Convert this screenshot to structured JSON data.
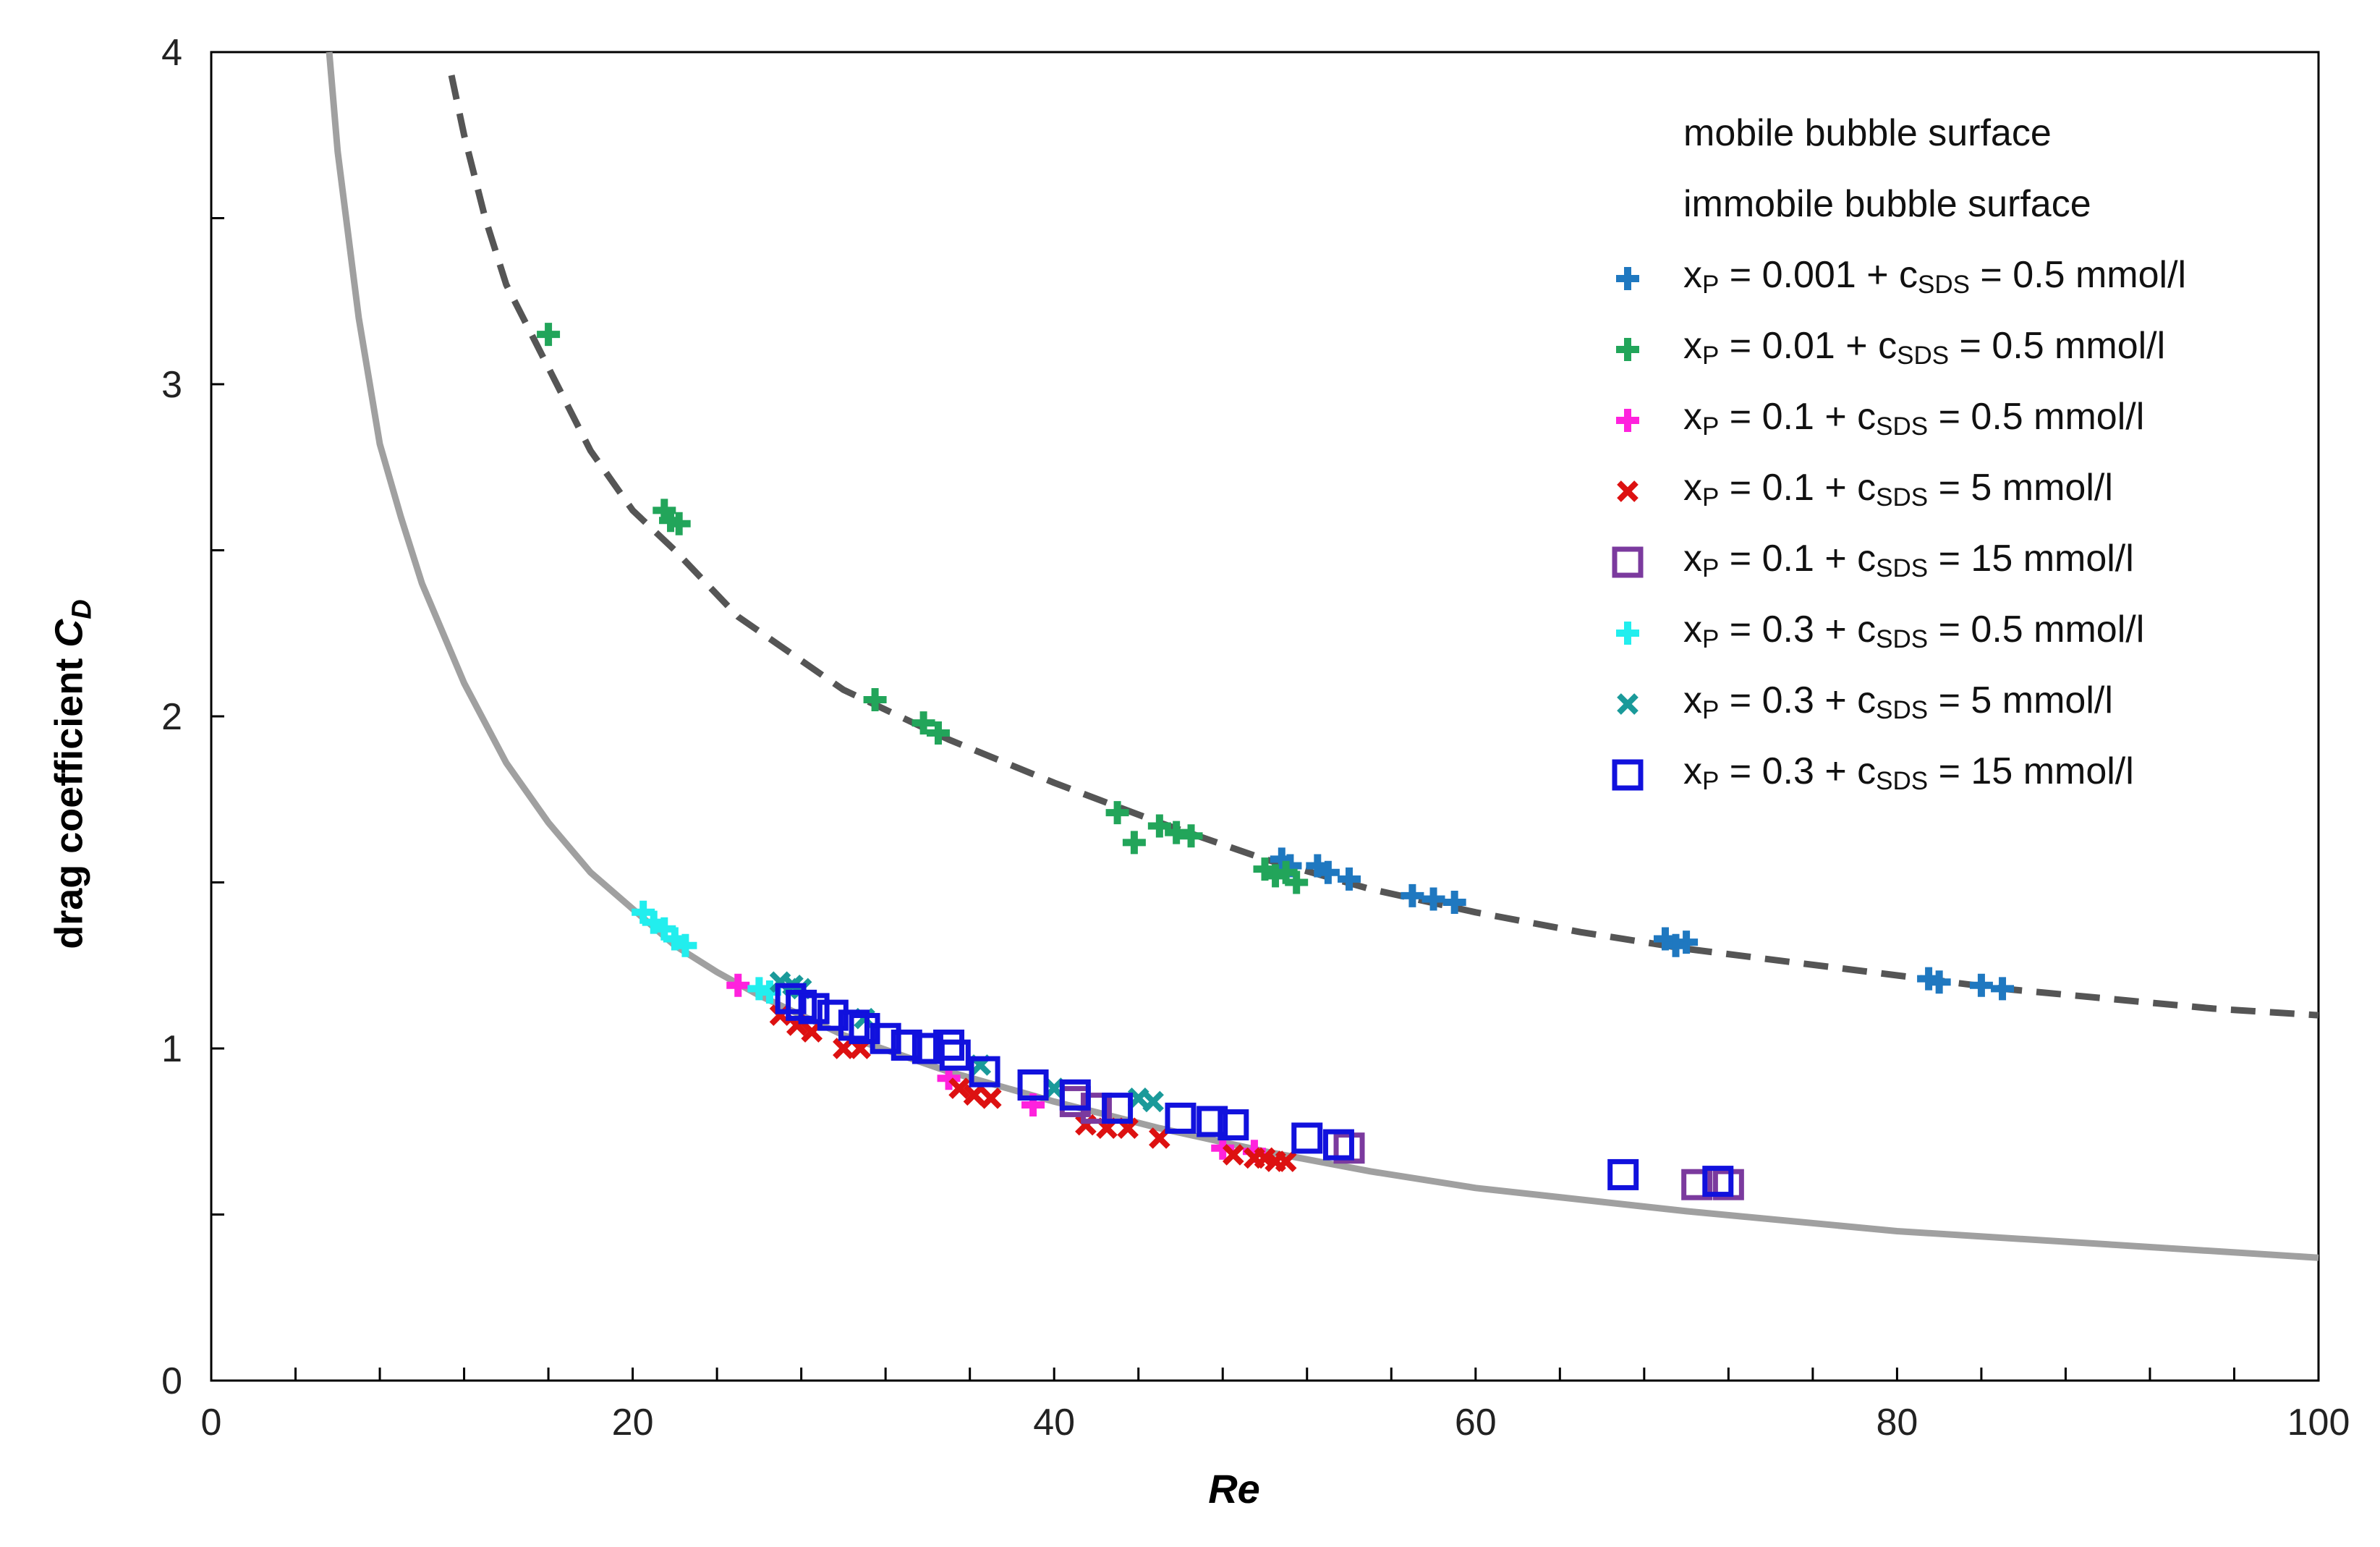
{
  "chart_data": {
    "type": "scatter",
    "title": "",
    "xlabel": "Re",
    "ylabel": {
      "prefix": "drag coefficient ",
      "symbol": "C",
      "sub": "D"
    },
    "xlim": [
      0,
      100
    ],
    "ylim": [
      0,
      4
    ],
    "x_ticks": [
      0,
      20,
      40,
      60,
      80,
      100
    ],
    "y_ticks": [
      0,
      1,
      2,
      3,
      4
    ],
    "x_minor_step": 4,
    "y_minor_step": 0.5,
    "legend_position": "top-right",
    "curves": [
      {
        "name": "mobile bubble surface",
        "style": "solid",
        "color": "#a0a0a0",
        "points": [
          [
            5.6,
            4.0
          ],
          [
            6,
            3.7
          ],
          [
            7,
            3.2
          ],
          [
            8,
            2.82
          ],
          [
            9,
            2.6
          ],
          [
            10,
            2.4
          ],
          [
            12,
            2.1
          ],
          [
            14,
            1.86
          ],
          [
            16,
            1.68
          ],
          [
            18,
            1.53
          ],
          [
            20,
            1.42
          ],
          [
            22,
            1.31
          ],
          [
            24,
            1.23
          ],
          [
            26,
            1.16
          ],
          [
            28,
            1.1
          ],
          [
            30,
            1.04
          ],
          [
            35,
            0.93
          ],
          [
            40,
            0.84
          ],
          [
            45,
            0.76
          ],
          [
            50,
            0.69
          ],
          [
            55,
            0.63
          ],
          [
            60,
            0.58
          ],
          [
            70,
            0.51
          ],
          [
            80,
            0.45
          ],
          [
            90,
            0.41
          ],
          [
            100,
            0.37
          ]
        ]
      },
      {
        "name": "immobile bubble surface",
        "style": "dashed",
        "color": "#555555",
        "points": [
          [
            11.4,
            3.93
          ],
          [
            12,
            3.75
          ],
          [
            13,
            3.5
          ],
          [
            14,
            3.3
          ],
          [
            16,
            3.05
          ],
          [
            18,
            2.8
          ],
          [
            20,
            2.62
          ],
          [
            22,
            2.5
          ],
          [
            25,
            2.3
          ],
          [
            30,
            2.08
          ],
          [
            35,
            1.93
          ],
          [
            40,
            1.8
          ],
          [
            45,
            1.68
          ],
          [
            50,
            1.57
          ],
          [
            55,
            1.48
          ],
          [
            60,
            1.41
          ],
          [
            65,
            1.35
          ],
          [
            70,
            1.3
          ],
          [
            75,
            1.26
          ],
          [
            80,
            1.22
          ],
          [
            85,
            1.18
          ],
          [
            90,
            1.15
          ],
          [
            95,
            1.12
          ],
          [
            100,
            1.1
          ]
        ]
      }
    ],
    "series": [
      {
        "name_main": "x",
        "name_p": "P",
        "name_rest": " = 0.001 + c",
        "name_sds": "SDS",
        "name_end": " = 0.5 mmol/l",
        "marker": "plus",
        "color": "#1f78c0",
        "points": [
          [
            50.8,
            1.57
          ],
          [
            51.2,
            1.55
          ],
          [
            52.5,
            1.55
          ],
          [
            53,
            1.53
          ],
          [
            54,
            1.51
          ],
          [
            57,
            1.46
          ],
          [
            58,
            1.45
          ],
          [
            59,
            1.44
          ],
          [
            69,
            1.33
          ],
          [
            70,
            1.32
          ],
          [
            69.5,
            1.31
          ],
          [
            81.5,
            1.21
          ],
          [
            82,
            1.2
          ],
          [
            84,
            1.19
          ],
          [
            85,
            1.18
          ]
        ]
      },
      {
        "name_main": "x",
        "name_p": "P",
        "name_rest": " = 0.01 + c",
        "name_sds": "SDS",
        "name_end": " = 0.5 mmol/l",
        "marker": "plus",
        "color": "#22a55a",
        "points": [
          [
            16,
            3.15
          ],
          [
            21.5,
            2.62
          ],
          [
            21.8,
            2.59
          ],
          [
            22.2,
            2.58
          ],
          [
            31.5,
            2.05
          ],
          [
            33.8,
            1.98
          ],
          [
            34.5,
            1.95
          ],
          [
            43,
            1.71
          ],
          [
            43.8,
            1.62
          ],
          [
            45,
            1.67
          ],
          [
            45.8,
            1.65
          ],
          [
            46.5,
            1.64
          ],
          [
            50,
            1.54
          ],
          [
            50.5,
            1.52
          ],
          [
            51,
            1.53
          ],
          [
            51.5,
            1.5
          ]
        ]
      },
      {
        "name_main": "x",
        "name_p": "P",
        "name_rest": " = 0.1 + c",
        "name_sds": "SDS",
        "name_end": " = 0.5 mmol/l",
        "marker": "plus",
        "color": "#ff22dd",
        "points": [
          [
            25,
            1.19
          ],
          [
            35,
            0.91
          ],
          [
            39,
            0.83
          ],
          [
            48,
            0.7
          ],
          [
            49.5,
            0.69
          ]
        ]
      },
      {
        "name_main": "x",
        "name_p": "P",
        "name_rest": " = 0.1 + c",
        "name_sds": "SDS",
        "name_end": " =  5 mmol/l",
        "marker": "x",
        "color": "#dd1111",
        "points": [
          [
            27,
            1.1
          ],
          [
            27.8,
            1.07
          ],
          [
            28.5,
            1.05
          ],
          [
            30,
            1.0
          ],
          [
            30.8,
            1.0
          ],
          [
            35.5,
            0.88
          ],
          [
            36.2,
            0.86
          ],
          [
            37,
            0.85
          ],
          [
            41.5,
            0.77
          ],
          [
            42.5,
            0.76
          ],
          [
            43.5,
            0.76
          ],
          [
            45,
            0.73
          ],
          [
            48.5,
            0.68
          ],
          [
            49.5,
            0.67
          ],
          [
            50,
            0.67
          ],
          [
            50.5,
            0.66
          ],
          [
            51,
            0.66
          ]
        ]
      },
      {
        "name_main": "x",
        "name_p": "P",
        "name_rest": " = 0.1 + c",
        "name_sds": "SDS",
        "name_end": " = 15 mmol/l",
        "marker": "square",
        "color": "#7b3a9e",
        "points": [
          [
            41,
            0.84
          ],
          [
            42,
            0.82
          ],
          [
            54,
            0.7
          ],
          [
            70.5,
            0.59
          ],
          [
            72,
            0.59
          ]
        ]
      },
      {
        "name_main": "x",
        "name_p": "P",
        "name_rest": " = 0.3 + c",
        "name_sds": "SDS",
        "name_end": " = 0.5 mmol/l",
        "marker": "plus",
        "color": "#22eeee",
        "points": [
          [
            20.5,
            1.41
          ],
          [
            21,
            1.38
          ],
          [
            21.5,
            1.36
          ],
          [
            22,
            1.33
          ],
          [
            22.5,
            1.31
          ],
          [
            26,
            1.18
          ],
          [
            26.5,
            1.17
          ]
        ]
      },
      {
        "name_main": "x",
        "name_p": "P",
        "name_rest": " = 0.3 + c",
        "name_sds": "SDS",
        "name_end": " = 5 mmol/l",
        "marker": "x",
        "color": "#1a9a9a",
        "points": [
          [
            27,
            1.2
          ],
          [
            27.6,
            1.19
          ],
          [
            28,
            1.18
          ],
          [
            31,
            1.09
          ],
          [
            36.5,
            0.95
          ],
          [
            40,
            0.88
          ],
          [
            44,
            0.85
          ],
          [
            44.7,
            0.84
          ]
        ]
      },
      {
        "name_main": "x",
        "name_p": "P",
        "name_rest": " = 0.3 + c",
        "name_sds": "SDS",
        "name_end": " = 15 mmol/l",
        "marker": "square",
        "color": "#1111dd",
        "points": [
          [
            27.5,
            1.15
          ],
          [
            28,
            1.13
          ],
          [
            28.6,
            1.12
          ],
          [
            29.5,
            1.1
          ],
          [
            30.5,
            1.07
          ],
          [
            31,
            1.06
          ],
          [
            32,
            1.03
          ],
          [
            33,
            1.01
          ],
          [
            34,
            1.0
          ],
          [
            35,
            1.01
          ],
          [
            35.3,
            0.98
          ],
          [
            36.7,
            0.93
          ],
          [
            39,
            0.89
          ],
          [
            41,
            0.86
          ],
          [
            43,
            0.82
          ],
          [
            46,
            0.79
          ],
          [
            47.5,
            0.78
          ],
          [
            48.5,
            0.77
          ],
          [
            52,
            0.73
          ],
          [
            53.5,
            0.71
          ],
          [
            67,
            0.62
          ],
          [
            71.5,
            0.6
          ]
        ]
      }
    ]
  }
}
